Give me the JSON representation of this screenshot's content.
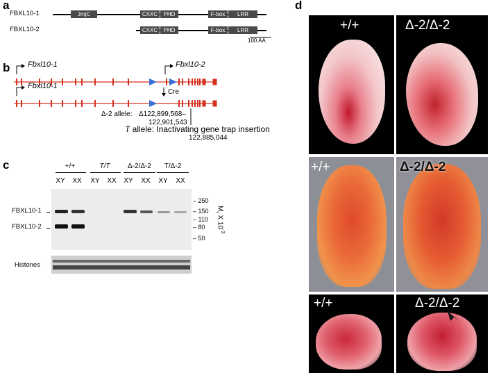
{
  "panel_a": {
    "letter": "a",
    "proteins": [
      {
        "name": "FBXL10-1",
        "domains": [
          "JmjC",
          "CXXC",
          "PHD",
          "F-box",
          "LRR"
        ]
      },
      {
        "name": "FBXL10-2",
        "domains": [
          "CXXC",
          "PHD",
          "F-box",
          "LRR"
        ]
      }
    ],
    "scale_bar": "100 AA"
  },
  "panel_b": {
    "letter": "b",
    "gene_top_1": "Fbxl10-1",
    "gene_top_2": "Fbxl10-2",
    "gene_bottom_1": "Fbxl10-1",
    "cre": "Cre",
    "delta_allele_name": "Δ-2 allele:",
    "delta_allele_coords_1": "Δ122,899,568–",
    "delta_allele_coords_2": "122,901,543",
    "t_allele": "T allele: Inactivating gene trap insertion",
    "t_allele_t": "T",
    "t_allele_rest": " allele: Inactivating gene trap insertion",
    "t_allele_coord": "122,885,044",
    "colors": {
      "gene": "#d7301f",
      "loxp": "#3a6fd8"
    }
  },
  "panel_c": {
    "letter": "c",
    "groups": [
      "+/+",
      "T/T",
      "Δ-2/Δ-2",
      "T/Δ-2"
    ],
    "lanes": [
      "XY",
      "XX",
      "XY",
      "XX",
      "XY",
      "XX",
      "XY",
      "XX"
    ],
    "band_labels": [
      "FBXL10-1",
      "FBXL10-2"
    ],
    "markers": [
      "250",
      "150",
      "110",
      "80",
      "50"
    ],
    "mr_label_main": "M",
    "mr_label_sub": "r",
    "mr_label_rest": " X 10",
    "mr_label_sup": "-3",
    "histones": "Histones"
  },
  "panel_d": {
    "letter": "d",
    "labels": [
      "+/+",
      "Δ-2/Δ-2",
      "+/+",
      "Δ-2/Δ-2",
      "+/+",
      "Δ-2/Δ-2"
    ]
  }
}
